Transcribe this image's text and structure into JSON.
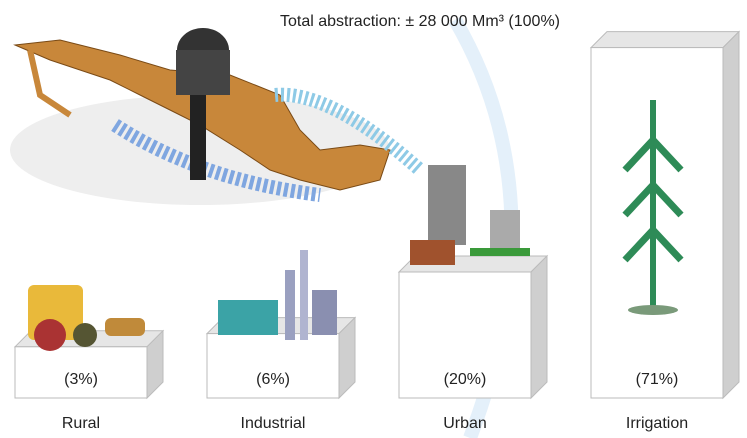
{
  "chart_data": {
    "type": "bar",
    "title": "Total abstraction: ± 28 000 Mm³ (100%)",
    "categories": [
      "Rural",
      "Industrial",
      "Urban",
      "Irrigation"
    ],
    "values": [
      3,
      6,
      20,
      71
    ],
    "value_labels": [
      "(3%)",
      "(6%)",
      "(20%)",
      "(71%)"
    ],
    "color": "#ffffff"
  }
}
